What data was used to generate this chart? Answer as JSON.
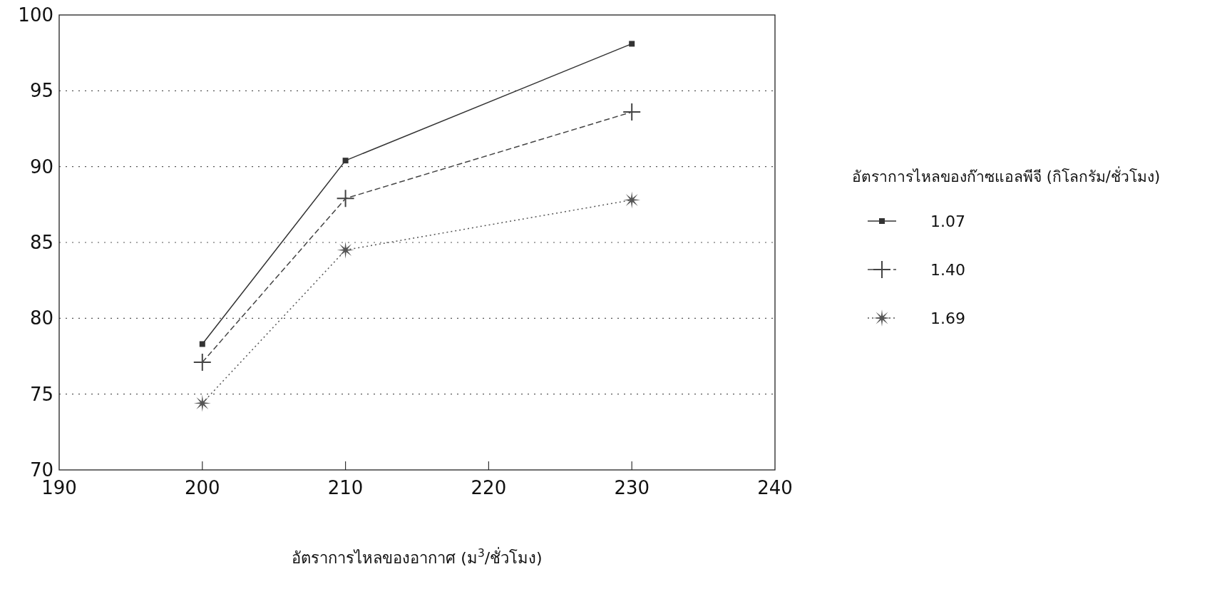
{
  "chart_data": {
    "type": "line",
    "x": [
      200,
      210,
      230
    ],
    "series": [
      {
        "name": "1.07",
        "color": "#333333",
        "values": [
          78.3,
          90.4,
          98.1
        ],
        "marker": "square",
        "line_style": "solid"
      },
      {
        "name": "1.40",
        "color": "#444444",
        "values": [
          77.1,
          87.9,
          93.6
        ],
        "marker": "cross",
        "line_style": "dashed"
      },
      {
        "name": "1.69",
        "color": "#555555",
        "values": [
          74.4,
          84.5,
          87.8
        ],
        "marker": "star",
        "line_style": "dotted"
      }
    ],
    "xlabel": "อัตราการไหลของอากาศ (ม$^{3}$/ชั่วโมง)",
    "legend_title": "อัตราการไหลของก๊าซแอลพีจี (กิโลกรัม/ชั่วโมง)",
    "xlim": [
      190,
      240
    ],
    "xticks": [
      190,
      200,
      210,
      220,
      230,
      240
    ],
    "ylim": [
      70,
      100
    ],
    "yticks": [
      70,
      75,
      80,
      85,
      90,
      95,
      100
    ],
    "grid": "y",
    "legend": "right"
  }
}
